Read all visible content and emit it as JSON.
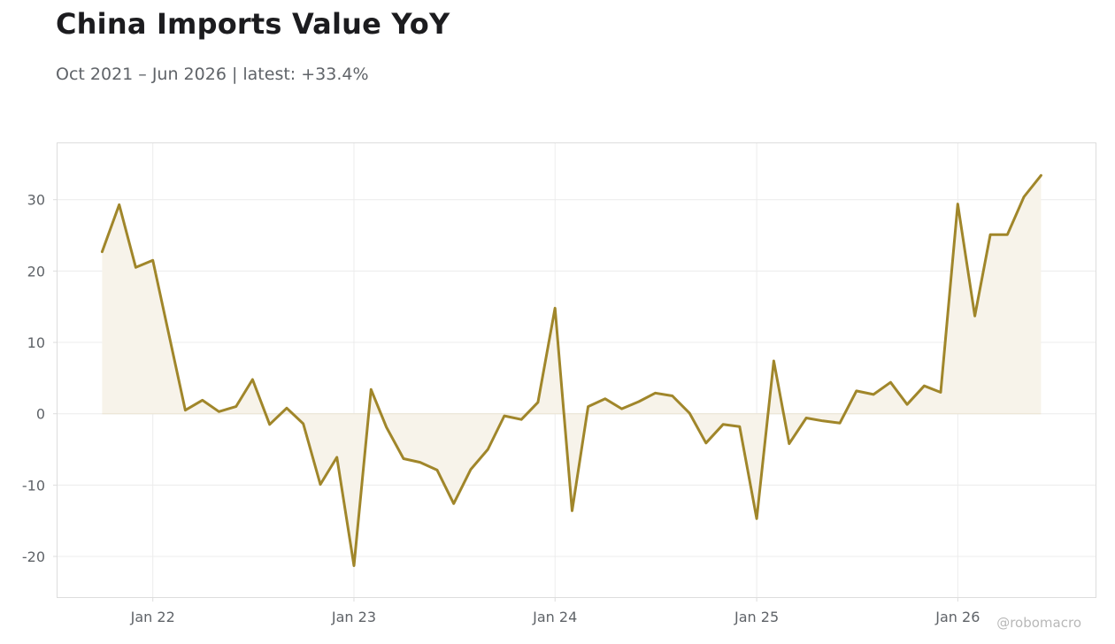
{
  "title": "China Imports Value YoY",
  "subtitle": "Oct 2021 – Jun 2026 | latest: +33.4%",
  "watermark": "@robomacro",
  "colors": {
    "line": "#a0862a",
    "fill": "#f7f3ea",
    "grid": "#ececec",
    "frame": "#dddddd",
    "text": "#5f6368"
  },
  "chart_data": {
    "type": "area",
    "title": "China Imports Value YoY",
    "xlabel": "",
    "ylabel": "",
    "ylim": [
      -25.7,
      37.9
    ],
    "xlim": [
      "2021-07-12",
      "2026-09-08"
    ],
    "yticks": [
      -20,
      -10,
      0,
      10,
      20,
      30
    ],
    "ytick_labels": [
      "-20",
      "-10",
      "0",
      "10",
      "20",
      "30"
    ],
    "xticks": [
      "2022-01-01",
      "2023-01-01",
      "2024-01-01",
      "2025-01-01",
      "2026-01-01"
    ],
    "xtick_labels": [
      "Jan 22",
      "Jan 23",
      "Jan 24",
      "Jan 25",
      "Jan 26"
    ],
    "grid": true,
    "legend": "none",
    "series": [
      {
        "x": [
          "2021-10",
          "2021-11",
          "2021-12",
          "2022-01",
          "2022-03",
          "2022-04",
          "2022-05",
          "2022-06",
          "2022-07",
          "2022-08",
          "2022-09",
          "2022-10",
          "2022-11",
          "2022-12",
          "2023-01",
          "2023-02",
          "2023-03",
          "2023-04",
          "2023-05",
          "2023-06",
          "2023-07",
          "2023-08",
          "2023-09",
          "2023-10",
          "2023-11",
          "2023-12",
          "2024-01",
          "2024-02",
          "2024-03",
          "2024-04",
          "2024-05",
          "2024-06",
          "2024-07",
          "2024-08",
          "2024-09",
          "2024-10",
          "2024-11",
          "2024-12",
          "2025-01",
          "2025-02",
          "2025-03",
          "2025-04",
          "2025-05",
          "2025-06",
          "2025-07",
          "2025-08",
          "2025-09",
          "2025-10",
          "2025-11",
          "2025-12",
          "2026-01",
          "2026-02",
          "2026-03",
          "2026-04",
          "2026-05",
          "2026-06"
        ],
        "values": [
          22.7,
          29.3,
          20.5,
          21.5,
          0.5,
          1.9,
          0.3,
          1.0,
          4.8,
          -1.5,
          0.8,
          -1.4,
          -9.9,
          -6.1,
          -21.3,
          3.4,
          -1.9,
          -6.3,
          -6.8,
          -7.9,
          -12.6,
          -7.8,
          -5.0,
          -0.3,
          -0.8,
          1.6,
          14.8,
          -13.6,
          1.0,
          2.1,
          0.7,
          1.7,
          2.9,
          2.5,
          0.1,
          -4.1,
          -1.5,
          -1.8,
          -14.7,
          7.4,
          -4.2,
          -0.6,
          -1.0,
          -1.3,
          3.2,
          2.7,
          4.4,
          1.3,
          3.9,
          3.0,
          29.4,
          13.7,
          25.1,
          25.1,
          30.4,
          33.4
        ]
      }
    ]
  }
}
